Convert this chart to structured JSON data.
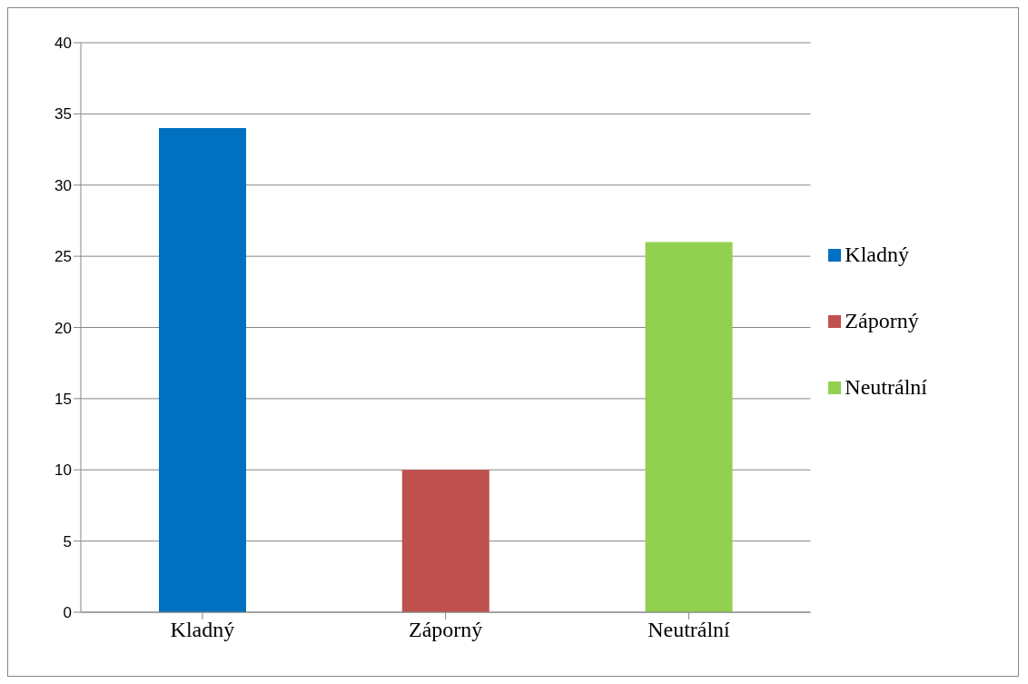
{
  "chart_data": {
    "type": "bar",
    "categories": [
      "Kladný",
      "Záporný",
      "Neutrální"
    ],
    "stacked": true,
    "series": [
      {
        "name": "Kladný",
        "color": "#0070c0",
        "values": [
          34,
          null,
          null
        ]
      },
      {
        "name": "Záporný",
        "color": "#c0504d",
        "values": [
          null,
          10,
          null
        ]
      },
      {
        "name": "Neutrální",
        "color": "#92d050",
        "values": [
          null,
          null,
          26
        ]
      }
    ],
    "ylim": [
      0,
      40
    ],
    "yticks": [
      0,
      5,
      10,
      15,
      20,
      25,
      30,
      35,
      40
    ],
    "grid": "y",
    "legend": "right"
  }
}
